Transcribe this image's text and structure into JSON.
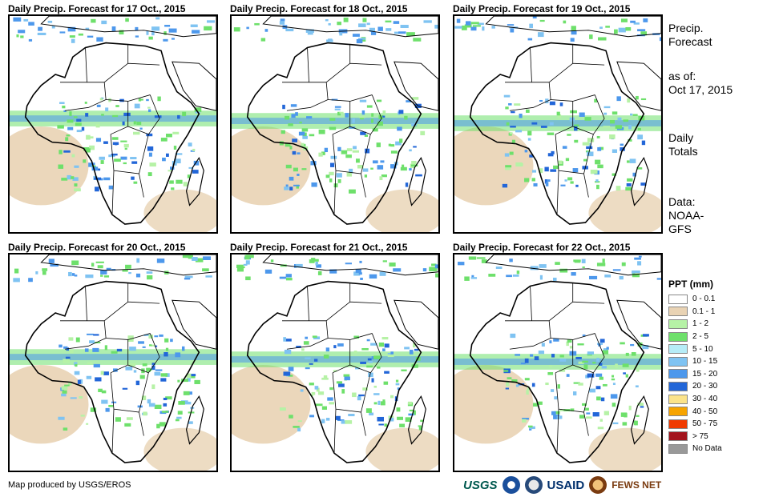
{
  "panels": [
    {
      "title": "Daily Precip. Forecast for 17 Oct., 2015"
    },
    {
      "title": "Daily Precip. Forecast for 18 Oct., 2015"
    },
    {
      "title": "Daily Precip. Forecast for 19 Oct., 2015"
    },
    {
      "title": "Daily Precip. Forecast for 20 Oct., 2015"
    },
    {
      "title": "Daily Precip. Forecast for 21 Oct., 2015"
    },
    {
      "title": "Daily Precip. Forecast for 22 Oct., 2015"
    }
  ],
  "side": {
    "heading_line1": "Precip.",
    "heading_line2": "Forecast",
    "asof_label": "as of:",
    "asof_date": "Oct 17, 2015",
    "totals_line1": "Daily",
    "totals_line2": "Totals",
    "data_line1": "Data:",
    "data_line2": "NOAA-",
    "data_line3": "GFS"
  },
  "legend": {
    "title": "PPT (mm)",
    "items": [
      {
        "label": "0 - 0.1",
        "color": "#ffffff"
      },
      {
        "label": "0.1 - 1",
        "color": "#e9d3b4"
      },
      {
        "label": "1 - 2",
        "color": "#b6f2a6"
      },
      {
        "label": "2 - 5",
        "color": "#6ee06b"
      },
      {
        "label": "5 - 10",
        "color": "#b6ecf7"
      },
      {
        "label": "10 - 15",
        "color": "#7fc3f2"
      },
      {
        "label": "15 - 20",
        "color": "#4d98ec"
      },
      {
        "label": "20 - 30",
        "color": "#2266d8"
      },
      {
        "label": "30 - 40",
        "color": "#fbe38a"
      },
      {
        "label": "40 - 50",
        "color": "#f7a400"
      },
      {
        "label": "50 - 75",
        "color": "#f03a00"
      },
      {
        "label": "> 75",
        "color": "#a3141d"
      },
      {
        "label": "No Data",
        "color": "#999999"
      }
    ]
  },
  "credit": "Map produced by USGS/EROS",
  "logos": {
    "usgs": "USGS",
    "usaid": "USAID",
    "fews": "FEWS NET"
  }
}
